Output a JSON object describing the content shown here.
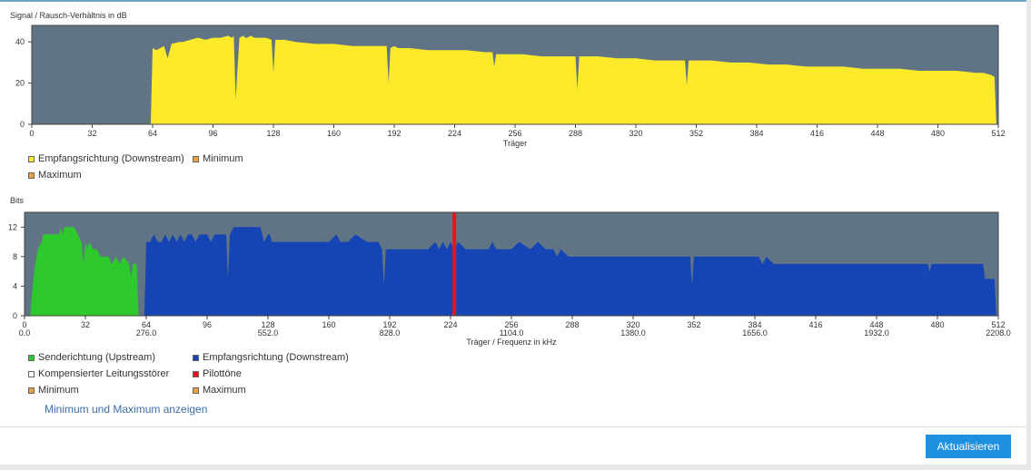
{
  "colors": {
    "plot_bg": "#617485",
    "downstream_snr": "#fce92a",
    "upstream": "#2dc92d",
    "downstream_bits": "#1545b5",
    "pilot": "#e8141a",
    "button": "#1e90e0",
    "link": "#3b6ea8"
  },
  "chart_data": [
    {
      "type": "area",
      "title": "Signal / Rausch-Verhältnis in dB",
      "xlabel": "Träger",
      "ylabel": "",
      "xlim": [
        0,
        512
      ],
      "ylim": [
        0,
        48
      ],
      "xticks": [
        0,
        32,
        64,
        96,
        128,
        160,
        192,
        224,
        256,
        288,
        320,
        352,
        384,
        416,
        448,
        480,
        512
      ],
      "yticks": [
        0,
        20,
        40
      ],
      "grid": false,
      "series": [
        {
          "name": "Empfangsrichtung (Downstream)",
          "color": "#fce92a",
          "x": [
            0,
            63,
            64,
            66,
            70,
            72,
            74,
            78,
            80,
            84,
            88,
            92,
            96,
            100,
            104,
            106,
            107,
            108,
            110,
            112,
            113,
            114,
            116,
            118,
            120,
            124,
            127,
            128,
            129,
            130,
            134,
            140,
            150,
            160,
            170,
            180,
            188,
            189,
            190,
            192,
            194,
            196,
            200,
            210,
            220,
            230,
            240,
            244,
            245,
            246,
            250,
            256,
            260,
            270,
            280,
            288,
            289,
            290,
            300,
            310,
            320,
            330,
            340,
            346,
            347,
            348,
            352,
            360,
            370,
            380,
            390,
            400,
            410,
            420,
            430,
            440,
            450,
            460,
            470,
            480,
            490,
            500,
            504,
            508,
            510,
            511,
            512
          ],
          "values": [
            0,
            0,
            37,
            36,
            38,
            32,
            39,
            40,
            40,
            41,
            42,
            41,
            42,
            42,
            43,
            42,
            43,
            12,
            42,
            43,
            42,
            42,
            43,
            42,
            42,
            42,
            41,
            25,
            41,
            41,
            41,
            40,
            39,
            39,
            38,
            38,
            38,
            20,
            37,
            38,
            37,
            37,
            37,
            36,
            36,
            36,
            35,
            35,
            28,
            34,
            34,
            34,
            34,
            33,
            33,
            33,
            17,
            33,
            33,
            32,
            32,
            31,
            31,
            31,
            19,
            31,
            31,
            31,
            30,
            30,
            29,
            29,
            28,
            28,
            28,
            27,
            27,
            27,
            26,
            26,
            26,
            25,
            25,
            24,
            23,
            0,
            0
          ]
        }
      ],
      "legend": {
        "position": "bottom-left",
        "items": [
          {
            "label": "Empfangsrichtung (Downstream)",
            "color": "#fce92a"
          },
          {
            "label": "Minimum",
            "color": "#f0a13c"
          },
          {
            "label": "Maximum",
            "color": "#f0a13c"
          }
        ]
      }
    },
    {
      "type": "area",
      "title": "Bits",
      "xlabel": "Träger / Frequenz in kHz",
      "ylabel": "",
      "xlim": [
        0,
        512
      ],
      "ylim": [
        0,
        14
      ],
      "xticks": [
        0,
        32,
        64,
        96,
        128,
        160,
        192,
        224,
        256,
        288,
        320,
        352,
        384,
        416,
        448,
        480,
        512
      ],
      "xticks_secondary": [
        "0.0",
        "276.0",
        "552.0",
        "828.0",
        "1104.0",
        "1380.0",
        "1656.0",
        "1932.0",
        "2208.0"
      ],
      "yticks": [
        0,
        4,
        8,
        12
      ],
      "grid": false,
      "series": [
        {
          "name": "Senderichtung (Upstream)",
          "color": "#2dc92d",
          "x": [
            0,
            3,
            5,
            7,
            9,
            10,
            12,
            14,
            16,
            18,
            19,
            20,
            21,
            22,
            24,
            26,
            28,
            30,
            31,
            32,
            33,
            34,
            36,
            38,
            40,
            42,
            44,
            46,
            48,
            50,
            52,
            55,
            56,
            57,
            58,
            59,
            60,
            61
          ],
          "values": [
            0,
            0,
            6,
            9,
            10,
            11,
            11,
            11,
            11,
            11,
            12,
            11,
            12,
            12,
            12,
            12,
            11,
            10,
            7,
            10,
            9,
            10,
            9,
            9,
            8,
            8,
            8,
            7,
            8,
            7,
            8,
            7,
            5,
            7,
            7,
            7,
            0,
            0
          ]
        },
        {
          "name": "Empfangsrichtung (Downstream)",
          "color": "#1545b5",
          "x": [
            62,
            63,
            64,
            66,
            68,
            70,
            72,
            74,
            76,
            78,
            80,
            82,
            84,
            86,
            88,
            90,
            92,
            94,
            96,
            98,
            100,
            104,
            106,
            107,
            108,
            110,
            112,
            113,
            114,
            116,
            118,
            120,
            122,
            124,
            126,
            128,
            129,
            130,
            134,
            140,
            146,
            150,
            154,
            158,
            160,
            164,
            166,
            170,
            174,
            180,
            186,
            188,
            189,
            190,
            194,
            198,
            200,
            210,
            212,
            216,
            218,
            220,
            222,
            224,
            226,
            228,
            232,
            236,
            240,
            244,
            246,
            248,
            252,
            256,
            260,
            266,
            270,
            274,
            278,
            280,
            282,
            286,
            288,
            292,
            296,
            300,
            304,
            310,
            320,
            330,
            340,
            350,
            351,
            352,
            354,
            356,
            360,
            370,
            380,
            386,
            388,
            390,
            394,
            398,
            400,
            410,
            420,
            430,
            440,
            450,
            460,
            470,
            475,
            476,
            477,
            480,
            490,
            500,
            504,
            505,
            510,
            511,
            512
          ],
          "values": [
            0,
            0,
            10,
            10,
            11,
            10,
            10,
            11,
            10,
            11,
            10,
            11,
            10,
            11,
            11,
            10,
            11,
            11,
            11,
            10,
            11,
            11,
            11,
            5,
            11,
            12,
            12,
            12,
            12,
            12,
            12,
            12,
            12,
            12,
            10,
            11,
            11,
            10,
            10,
            10,
            10,
            10,
            10,
            10,
            10,
            11,
            10,
            10,
            11,
            10,
            10,
            9,
            4,
            9,
            9,
            9,
            9,
            9,
            9,
            10,
            9,
            10,
            9,
            10,
            9,
            10,
            9,
            9,
            9,
            9,
            10,
            9,
            9,
            9,
            10,
            9,
            10,
            9,
            9,
            8,
            9,
            8,
            8,
            8,
            8,
            8,
            8,
            8,
            8,
            8,
            8,
            8,
            4,
            8,
            8,
            8,
            8,
            8,
            8,
            8,
            7,
            8,
            7,
            7,
            7,
            7,
            7,
            7,
            7,
            7,
            7,
            7,
            7,
            6,
            7,
            7,
            7,
            7,
            7,
            5,
            5,
            0,
            0
          ]
        },
        {
          "name": "Pilottöne",
          "color": "#e8141a",
          "x": [
            226
          ],
          "values": [
            14
          ]
        }
      ],
      "legend": {
        "position": "bottom-left",
        "items": [
          {
            "label": "Senderichtung (Upstream)",
            "color": "#2dc92d"
          },
          {
            "label": "Empfangsrichtung (Downstream)",
            "color": "#1545b5"
          },
          {
            "label": "Kompensierter Leitungsstörer",
            "color": "#ffffff"
          },
          {
            "label": "Pilottöne",
            "color": "#e8141a"
          },
          {
            "label": "Minimum",
            "color": "#f0a13c"
          },
          {
            "label": "Maximum",
            "color": "#f0a13c"
          }
        ]
      }
    }
  ],
  "controls": {
    "toggle_minmax": "Minimum und Maximum anzeigen",
    "refresh_button": "Aktualisieren"
  }
}
